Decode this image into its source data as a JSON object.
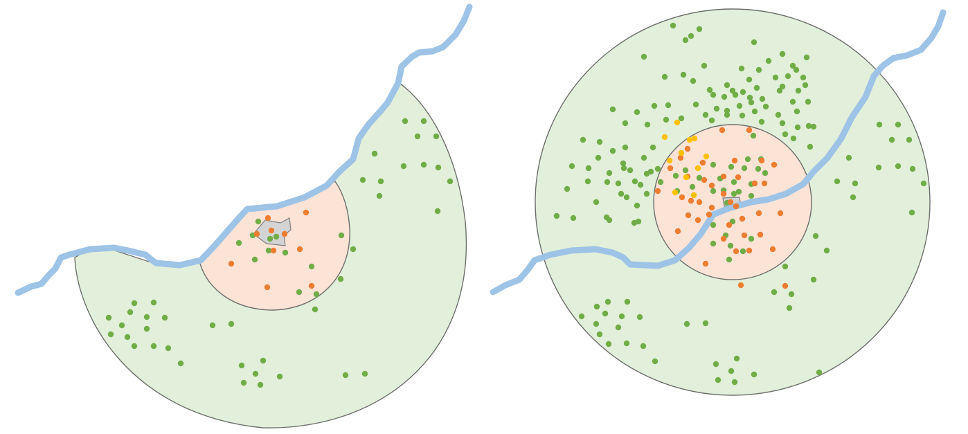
{
  "colors": {
    "outer_zone": "#e2efda",
    "inner_zone": "#fbe3d6",
    "core": "#d4d4d4",
    "river": "#9dc3e6",
    "outline": "#6e6e6e",
    "green_dot": "#70ad47",
    "orange_dot": "#ed7d31",
    "yellow_dot": "#ffc000"
  },
  "panels": [
    {
      "id": "left",
      "description_icon": "half-disc-city-on-river",
      "dot_colors": [
        "green",
        "orange"
      ]
    },
    {
      "id": "right",
      "description_icon": "full-disc-city-across-river",
      "dot_colors": [
        "green",
        "orange",
        "yellow"
      ]
    }
  ]
}
